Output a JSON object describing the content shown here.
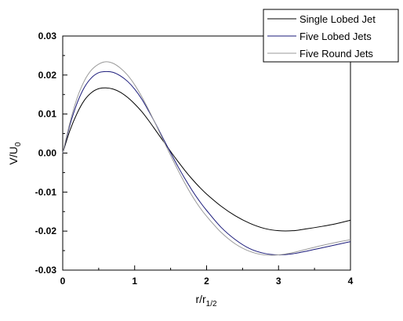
{
  "chart_data": {
    "type": "line",
    "xlabel": {
      "main": "r/r",
      "sub": "1/2"
    },
    "ylabel": {
      "main": "V/U",
      "sub": "0"
    },
    "xlim": [
      0,
      4
    ],
    "ylim": [
      -0.03,
      0.03
    ],
    "x_ticks": [
      0,
      1,
      2,
      3,
      4
    ],
    "x_tick_labels": [
      "0",
      "1",
      "2",
      "3",
      "4"
    ],
    "y_ticks": [
      0.03,
      0.02,
      0.01,
      0.0,
      -0.01,
      -0.02,
      -0.03
    ],
    "y_tick_labels": [
      "0.03",
      "0.02",
      "0.01",
      "0.00",
      "-0.01",
      "-0.02",
      "-0.03"
    ],
    "grid": false,
    "legend_position": "top-right",
    "x": [
      0,
      0.1,
      0.2,
      0.3,
      0.4,
      0.5,
      0.6,
      0.7,
      0.8,
      0.9,
      1.0,
      1.1,
      1.2,
      1.3,
      1.4,
      1.5,
      1.6,
      1.7,
      1.8,
      1.9,
      2.0,
      2.2,
      2.4,
      2.6,
      2.8,
      3.0,
      3.2,
      3.4,
      3.6,
      3.8,
      4.0
    ],
    "series": [
      {
        "name": "Single Lobed Jet",
        "color": "#000000",
        "values": [
          0.0,
          0.0058,
          0.0102,
          0.0135,
          0.0155,
          0.0165,
          0.0167,
          0.0164,
          0.0156,
          0.0143,
          0.0126,
          0.0106,
          0.0082,
          0.0056,
          0.003,
          0.0004,
          -0.0021,
          -0.0045,
          -0.0067,
          -0.0087,
          -0.0105,
          -0.0136,
          -0.0161,
          -0.018,
          -0.0193,
          -0.0199,
          -0.0199,
          -0.0194,
          -0.0188,
          -0.0181,
          -0.0172
        ]
      },
      {
        "name": "Five Lobed Jets",
        "color": "#1a1a7a",
        "values": [
          0.0,
          0.0072,
          0.0128,
          0.0168,
          0.0193,
          0.0206,
          0.0209,
          0.0207,
          0.0198,
          0.0184,
          0.0164,
          0.0138,
          0.0106,
          0.0072,
          0.0036,
          0.0001,
          -0.0034,
          -0.0066,
          -0.0096,
          -0.0123,
          -0.0147,
          -0.019,
          -0.0222,
          -0.0245,
          -0.0257,
          -0.0261,
          -0.0258,
          -0.0251,
          -0.0243,
          -0.0235,
          -0.0227
        ]
      },
      {
        "name": "Five Round Jets",
        "color": "#9a9a9a",
        "values": [
          0.0,
          0.0078,
          0.0141,
          0.0185,
          0.0213,
          0.0228,
          0.0234,
          0.023,
          0.0218,
          0.02,
          0.0175,
          0.0144,
          0.0109,
          0.0071,
          0.0032,
          -0.0006,
          -0.0043,
          -0.0078,
          -0.011,
          -0.0138,
          -0.0162,
          -0.0203,
          -0.0233,
          -0.0252,
          -0.0261,
          -0.0261,
          -0.0255,
          -0.0246,
          -0.0237,
          -0.0229,
          -0.0222
        ]
      }
    ]
  }
}
